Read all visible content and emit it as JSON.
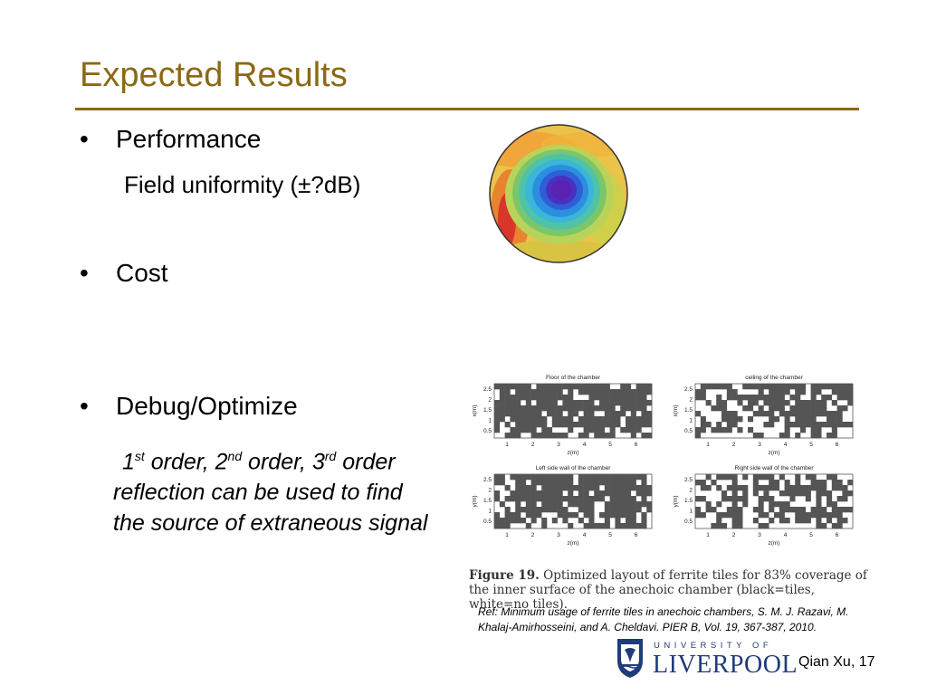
{
  "slide": {
    "title": "Expected Results",
    "bullets": [
      {
        "marker": "•",
        "text": "Performance"
      },
      {
        "marker": "•",
        "text": "Cost"
      },
      {
        "marker": "•",
        "text": "Debug/Optimize"
      }
    ],
    "performance_sub": "Field uniformity (±?dB)",
    "debug_note": {
      "o1": "1",
      "s1": "st",
      "w1": " order, ",
      "o2": "2",
      "s2": "nd",
      "w2": " order, ",
      "o3": "3",
      "s3": "rd",
      "w3": " order",
      "line2": "reflection can be used to find",
      "line3": "the source of  extraneous signal"
    },
    "figure": {
      "panels": [
        {
          "title": "Floor of the chamber",
          "ylabel": "x(m)",
          "xlabel": "z(m)"
        },
        {
          "title": "ceiling of the chamber",
          "ylabel": "x(m)",
          "xlabel": "z(m)"
        },
        {
          "title": "Left side wall of the chamber",
          "ylabel": "y(m)",
          "xlabel": "z(m)"
        },
        {
          "title": "Right side wall of the chamber",
          "ylabel": "y(m)",
          "xlabel": "z(m)"
        }
      ],
      "x_ticks": [
        "1",
        "2",
        "3",
        "4",
        "5",
        "6"
      ],
      "y_ticks": [
        "2.5",
        "2",
        "1.5",
        "1",
        "0.5"
      ],
      "caption_label": "Figure 19.",
      "caption_text": "Optimized layout of ferrite tiles for 83% coverage of the inner surface of the anechoic chamber (black=tiles, white=no tiles)."
    },
    "reference": "Ref: Minimum usage of ferrite tiles in anechoic chambers, S. M. J. Razavi, M. Khalaj-Amirhosseini, and A. Cheldavi. PIER B, Vol. 19, 367-387, 2010.",
    "logo": {
      "line1": "UNIVERSITY OF",
      "line2": "LIVERPOOL"
    },
    "footer": "Qian Xu, 17",
    "colors": {
      "title": "#8B6914",
      "tile": "#555555",
      "logo": "#1f3c78"
    }
  }
}
